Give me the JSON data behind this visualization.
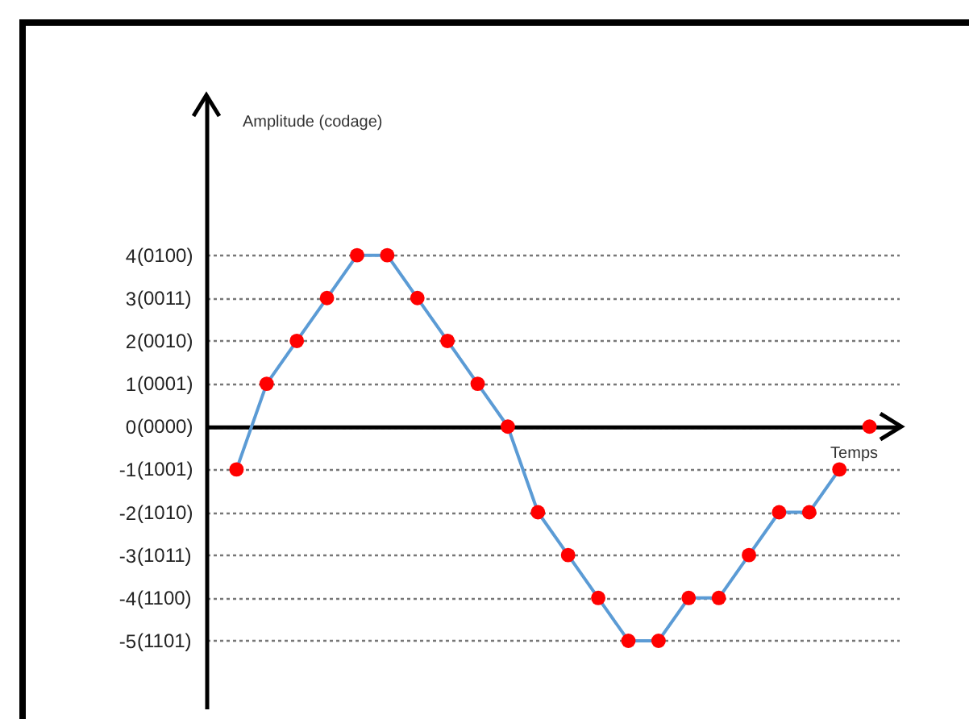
{
  "chart_data": {
    "type": "line",
    "xlabel": "Temps",
    "ylabel": "Amplitude (codage)",
    "categories": [
      null,
      null,
      null,
      null,
      null,
      null,
      null,
      null,
      null,
      null,
      null,
      null,
      null,
      null,
      null,
      null,
      null,
      null,
      null,
      null,
      null,
      null
    ],
    "series": [
      {
        "color": "#5b9bd5",
        "marker": "none",
        "values": [
          -1,
          1,
          2,
          3,
          4,
          4,
          3,
          2,
          1,
          0,
          -2,
          -3,
          -4,
          -5,
          -5,
          -4,
          -4,
          -3,
          -2,
          -2,
          -1,
          null
        ]
      },
      {
        "type": "scatter",
        "color": "#ff0000",
        "values": [
          -1,
          1,
          2,
          3,
          4,
          4,
          3,
          2,
          1,
          0,
          -2,
          -3,
          -4,
          -5,
          -5,
          -4,
          -4,
          -3,
          -2,
          -2,
          -1,
          0
        ]
      }
    ],
    "ylim": [
      -6.6,
      7.7
    ],
    "yticks": [
      4,
      3,
      2,
      1,
      0,
      -1,
      -2,
      -3,
      -4,
      -5
    ],
    "annotations": [
      "(0100)",
      "(0011)",
      "(0010)",
      "(0001)",
      "(0000)",
      "(1001)",
      "(1010)",
      "(1011)",
      "(1100)",
      "(1101)"
    ],
    "grid": "y",
    "marker": "circle",
    "line_style": "solid",
    "tick_labels": "y"
  }
}
